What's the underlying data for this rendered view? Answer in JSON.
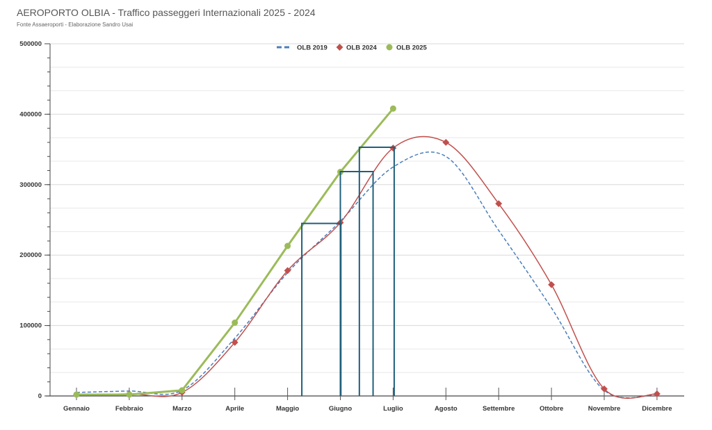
{
  "header": {
    "title": "AEROPORTO OLBIA - Traffico passeggeri Internazionali 2025 - 2024",
    "subtitle": "Fonte Assaeroporti - Elaborazione Sandro Usai"
  },
  "chart_data": {
    "type": "line",
    "title": "AEROPORTO OLBIA - Traffico passeggeri Internazionali 2025 - 2024",
    "xlabel": "",
    "ylabel": "",
    "ylim": [
      0,
      500000
    ],
    "yticks": [
      "0",
      "100000",
      "200000",
      "300000",
      "400000",
      "500000"
    ],
    "categories": [
      "Gennaio",
      "Febbraio",
      "Marzo",
      "Aprile",
      "Maggio",
      "Giugno",
      "Luglio",
      "Agosto",
      "Settembre",
      "Ottobre",
      "Novembre",
      "Dicembre"
    ],
    "legend_position": "top-center",
    "grid": true,
    "series": [
      {
        "name": "OLB 2019",
        "color": "#4a7ebb",
        "style": "dashed-smooth",
        "values": [
          5000,
          7000,
          8000,
          82000,
          175000,
          248000,
          325000,
          340000,
          235000,
          125000,
          8000,
          2000
        ]
      },
      {
        "name": "OLB 2024",
        "color": "#c0504d",
        "style": "smooth-diamond",
        "values": [
          2000,
          3000,
          5000,
          76000,
          178000,
          246000,
          352000,
          360000,
          273000,
          158000,
          10000,
          3000
        ]
      },
      {
        "name": "OLB 2025",
        "color": "#9bbb59",
        "style": "straight-circle",
        "values": [
          2000,
          2000,
          8000,
          104000,
          213000,
          318000,
          408000,
          null,
          null,
          null,
          null,
          null
        ]
      }
    ],
    "annotations": [
      {
        "type": "box",
        "color": "#1f5f7a",
        "x0": 4.27,
        "x1": 5.01,
        "y": 245000
      },
      {
        "type": "box",
        "color": "#1f5f7a",
        "x0": 5.0,
        "x1": 5.62,
        "y": 318500
      },
      {
        "type": "box",
        "color": "#1f5f7a",
        "x0": 5.36,
        "x1": 6.02,
        "y": 353000
      }
    ]
  }
}
